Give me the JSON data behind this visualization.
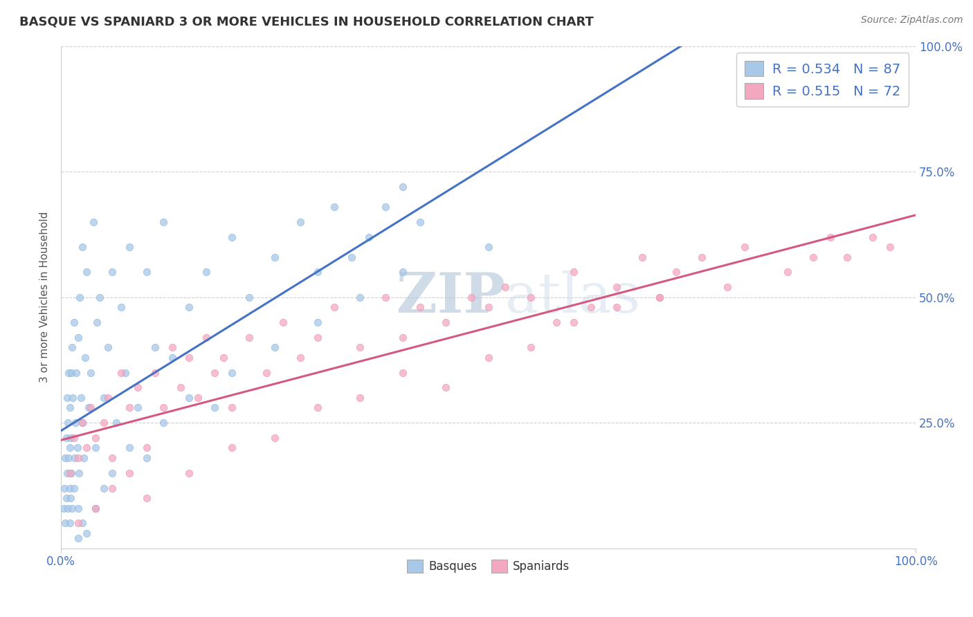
{
  "title": "BASQUE VS SPANIARD 3 OR MORE VEHICLES IN HOUSEHOLD CORRELATION CHART",
  "source_text": "Source: ZipAtlas.com",
  "ylabel": "3 or more Vehicles in Household",
  "xlim": [
    0,
    100
  ],
  "ylim": [
    0,
    100
  ],
  "ytick_right_values": [
    25,
    50,
    75,
    100
  ],
  "basque_color": "#a8c8e8",
  "spaniard_color": "#f4a8c0",
  "basque_edge_color": "#7ab0d8",
  "spaniard_edge_color": "#e888a8",
  "basque_line_color": "#4472c4",
  "spaniard_line_color": "#d45880",
  "legend_R_basque": "R = 0.534",
  "legend_N_basque": "N = 87",
  "legend_R_spaniard": "R = 0.515",
  "legend_N_spaniard": "N = 72",
  "watermark_zip": "ZIP",
  "watermark_atlas": "atlas",
  "background_color": "#ffffff",
  "grid_color": "#cccccc",
  "text_blue": "#4472c4",
  "text_dark": "#333333",
  "text_gray": "#777777",
  "title_fontsize": 13,
  "source_fontsize": 10,
  "tick_fontsize": 12,
  "legend_fontsize": 14,
  "ylabel_fontsize": 11,
  "scatter_size": 55,
  "scatter_alpha": 0.75,
  "line_width": 2.2,
  "basque_x": [
    0.3,
    0.4,
    0.5,
    0.5,
    0.6,
    0.6,
    0.7,
    0.7,
    0.8,
    0.8,
    0.9,
    0.9,
    1.0,
    1.0,
    1.0,
    1.0,
    1.1,
    1.1,
    1.2,
    1.2,
    1.3,
    1.3,
    1.4,
    1.5,
    1.5,
    1.6,
    1.7,
    1.8,
    1.9,
    2.0,
    2.0,
    2.1,
    2.2,
    2.3,
    2.5,
    2.5,
    2.7,
    2.8,
    3.0,
    3.2,
    3.5,
    3.8,
    4.0,
    4.2,
    4.5,
    5.0,
    5.5,
    6.0,
    6.5,
    7.0,
    7.5,
    8.0,
    9.0,
    10.0,
    11.0,
    12.0,
    13.0,
    15.0,
    17.0,
    20.0,
    22.0,
    25.0,
    28.0,
    30.0,
    32.0,
    34.0,
    36.0,
    38.0,
    40.0,
    42.0,
    2.0,
    2.5,
    3.0,
    4.0,
    5.0,
    6.0,
    8.0,
    10.0,
    12.0,
    15.0,
    18.0,
    20.0,
    25.0,
    30.0,
    35.0,
    40.0,
    50.0
  ],
  "basque_y": [
    8,
    12,
    5,
    18,
    10,
    22,
    15,
    30,
    8,
    25,
    18,
    35,
    5,
    12,
    20,
    28,
    10,
    22,
    15,
    35,
    8,
    40,
    30,
    12,
    45,
    18,
    25,
    35,
    20,
    8,
    42,
    15,
    50,
    30,
    25,
    60,
    18,
    38,
    55,
    28,
    35,
    65,
    20,
    45,
    50,
    30,
    40,
    55,
    25,
    48,
    35,
    60,
    28,
    55,
    40,
    65,
    38,
    48,
    55,
    62,
    50,
    58,
    65,
    55,
    68,
    58,
    62,
    68,
    72,
    65,
    2,
    5,
    3,
    8,
    12,
    15,
    20,
    18,
    25,
    30,
    28,
    35,
    40,
    45,
    50,
    55,
    60
  ],
  "spaniard_x": [
    1.0,
    1.5,
    2.0,
    2.5,
    3.0,
    3.5,
    4.0,
    5.0,
    5.5,
    6.0,
    7.0,
    8.0,
    9.0,
    10.0,
    11.0,
    12.0,
    13.0,
    14.0,
    15.0,
    16.0,
    17.0,
    18.0,
    19.0,
    20.0,
    22.0,
    24.0,
    26.0,
    28.0,
    30.0,
    32.0,
    35.0,
    38.0,
    40.0,
    42.0,
    45.0,
    48.0,
    50.0,
    52.0,
    55.0,
    58.0,
    60.0,
    62.0,
    65.0,
    68.0,
    70.0,
    72.0,
    75.0,
    78.0,
    80.0,
    85.0,
    88.0,
    90.0,
    92.0,
    95.0,
    97.0,
    2.0,
    4.0,
    6.0,
    8.0,
    10.0,
    15.0,
    20.0,
    25.0,
    30.0,
    35.0,
    40.0,
    45.0,
    50.0,
    55.0,
    60.0,
    65.0,
    70.0
  ],
  "spaniard_y": [
    15,
    22,
    18,
    25,
    20,
    28,
    22,
    25,
    30,
    18,
    35,
    28,
    32,
    20,
    35,
    28,
    40,
    32,
    38,
    30,
    42,
    35,
    38,
    28,
    42,
    35,
    45,
    38,
    42,
    48,
    40,
    50,
    42,
    48,
    45,
    50,
    48,
    52,
    50,
    45,
    55,
    48,
    52,
    58,
    50,
    55,
    58,
    52,
    60,
    55,
    58,
    62,
    58,
    62,
    60,
    5,
    8,
    12,
    15,
    10,
    15,
    20,
    22,
    28,
    30,
    35,
    32,
    38,
    40,
    45,
    48,
    50
  ]
}
